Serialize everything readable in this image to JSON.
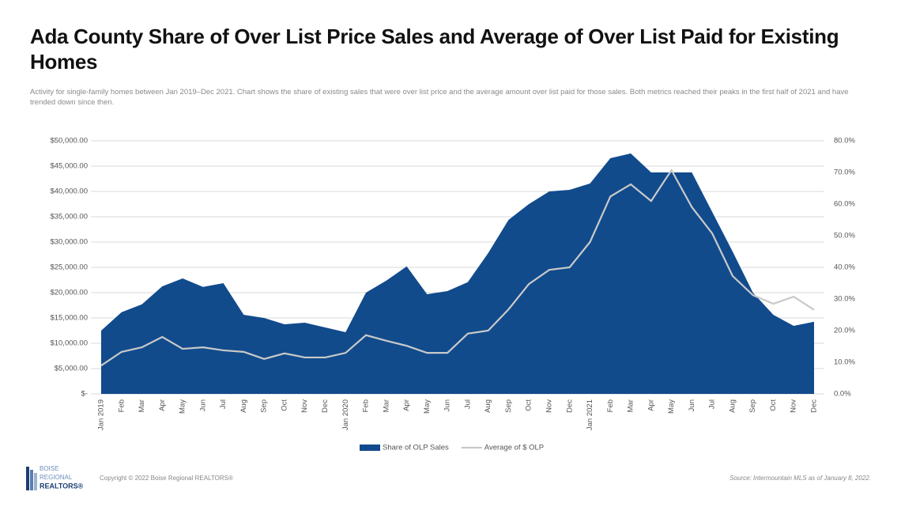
{
  "chart_data": {
    "type": "combo",
    "title": "Ada County Share of Over List Price Sales and Average of Over List Paid for Existing Homes",
    "subtitle": "Activity for single-family homes between Jan 2019–Dec 2021. Chart shows the share of existing sales that were over list price and the average amount over list paid for those sales. Both metrics reached their peaks in the first half of 2021 and have trended down since then.",
    "categories": [
      "Jan 2019",
      "Feb",
      "Mar",
      "Apr",
      "May",
      "Jun",
      "Jul",
      "Aug",
      "Sep",
      "Oct",
      "Nov",
      "Dec",
      "Jan 2020",
      "Feb",
      "Mar",
      "Apr",
      "May",
      "Jun",
      "Jul",
      "Aug",
      "Sep",
      "Oct",
      "Nov",
      "Dec",
      "Jan 2021",
      "Feb",
      "Mar",
      "Apr",
      "May",
      "Jun",
      "Jul",
      "Aug",
      "Sep",
      "Oct",
      "Nov",
      "Dec"
    ],
    "series": [
      {
        "name": "Share of OLP Sales",
        "type": "area",
        "axis": "y2",
        "color": "#114b8c",
        "values": [
          20.0,
          25.8,
          28.3,
          34.0,
          36.5,
          33.8,
          35.0,
          25.0,
          24.0,
          22.0,
          22.5,
          21.0,
          19.5,
          32.0,
          35.8,
          40.3,
          31.5,
          32.5,
          35.3,
          44.5,
          55.0,
          60.0,
          64.0,
          64.5,
          66.5,
          74.5,
          76.0,
          70.0,
          70.0,
          70.0,
          57.5,
          45.0,
          32.0,
          25.0,
          21.5,
          22.8
        ]
      },
      {
        "name": "Average of $ OLP",
        "type": "line",
        "axis": "y",
        "color": "#c9c9c9",
        "values": [
          5600,
          8300,
          9200,
          11250,
          8900,
          9200,
          8600,
          8300,
          6900,
          8000,
          7200,
          7200,
          8100,
          11600,
          10500,
          9500,
          8100,
          8100,
          11900,
          12500,
          16700,
          21700,
          24500,
          25000,
          30000,
          39000,
          41400,
          38100,
          44200,
          36900,
          31700,
          23300,
          19500,
          17800,
          19200,
          16600
        ]
      }
    ],
    "ylim": [
      0,
      50000
    ],
    "yticks": [
      {
        "value": 0,
        "label": "$-"
      },
      {
        "value": 5000,
        "label": "$5,000.00"
      },
      {
        "value": 10000,
        "label": "$10,000.00"
      },
      {
        "value": 15000,
        "label": "$15,000.00"
      },
      {
        "value": 20000,
        "label": "$20,000.00"
      },
      {
        "value": 25000,
        "label": "$25,000.00"
      },
      {
        "value": 30000,
        "label": "$30,000.00"
      },
      {
        "value": 35000,
        "label": "$35,000.00"
      },
      {
        "value": 40000,
        "label": "$40,000.00"
      },
      {
        "value": 45000,
        "label": "$45,000.00"
      },
      {
        "value": 50000,
        "label": "$50,000.00"
      }
    ],
    "y2lim": [
      0,
      80
    ],
    "y2ticks": [
      {
        "value": 0,
        "label": "0.0%"
      },
      {
        "value": 10,
        "label": "10.0%"
      },
      {
        "value": 20,
        "label": "20.0%"
      },
      {
        "value": 30,
        "label": "30.0%"
      },
      {
        "value": 40,
        "label": "40.0%"
      },
      {
        "value": 50,
        "label": "50.0%"
      },
      {
        "value": 60,
        "label": "60.0%"
      },
      {
        "value": 70,
        "label": "70.0%"
      },
      {
        "value": 80,
        "label": "80.0%"
      }
    ],
    "grid": true,
    "legend": "bottom"
  },
  "footer": {
    "copyright": "Copyright © 2022 Boise Regional REALTORS®",
    "source": "Source: Intermountain MLS as of January 8, 2022.",
    "logo": [
      "BOISE",
      "REGIONAL",
      "REALTORS®"
    ]
  }
}
